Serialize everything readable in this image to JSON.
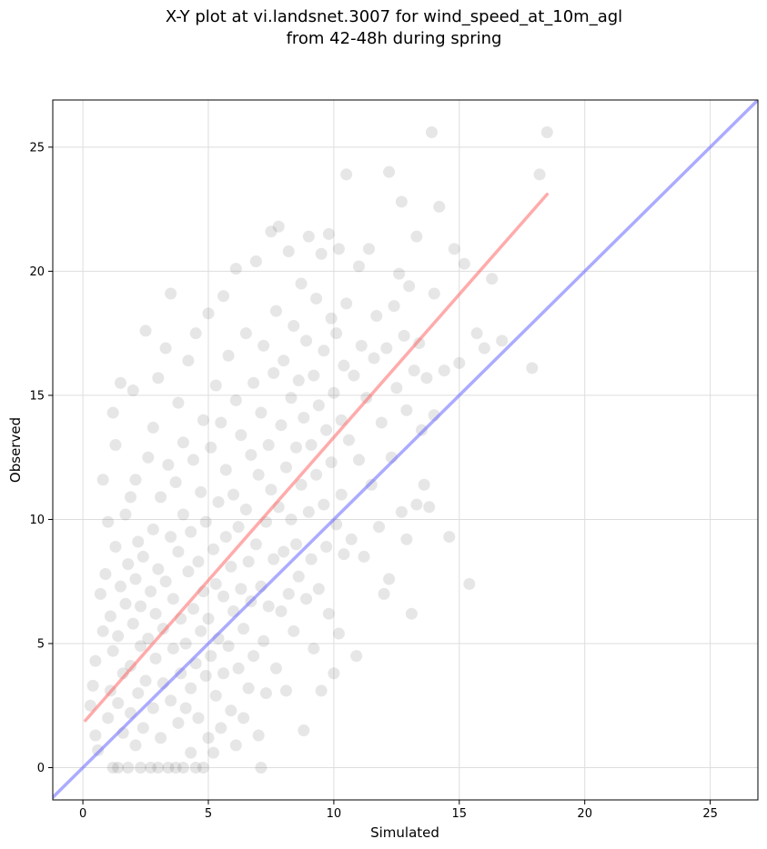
{
  "chart_data": {
    "type": "scatter",
    "title_line1": "X-Y plot at vi.landsnet.3007 for wind_speed_at_10m_agl",
    "title_line2": "from 42-48h during spring",
    "xlabel": "Simulated",
    "ylabel": "Observed",
    "xlim": [
      -1.2,
      26.9
    ],
    "ylim": [
      -1.3,
      26.9
    ],
    "xticks": [
      0,
      5,
      10,
      15,
      20,
      25
    ],
    "yticks": [
      0,
      5,
      10,
      15,
      20,
      25
    ],
    "xtick_labels": [
      "0",
      "5",
      "10",
      "15",
      "20",
      "25"
    ],
    "ytick_labels": [
      "0",
      "5",
      "10",
      "15",
      "20",
      "25"
    ],
    "grid": true,
    "colors": {
      "points": "#333333",
      "regression": "#ff6666",
      "identity": "#6666ff",
      "grid": "#dddddd"
    },
    "identity_line": {
      "x": [
        -1.2,
        26.9
      ],
      "y": [
        -1.2,
        26.9
      ]
    },
    "regression_line": {
      "x": [
        0.1,
        18.5
      ],
      "y": [
        1.9,
        23.1
      ]
    },
    "points": [
      [
        0.3,
        2.5
      ],
      [
        0.4,
        3.3
      ],
      [
        0.5,
        4.3
      ],
      [
        0.5,
        1.3
      ],
      [
        0.6,
        0.7
      ],
      [
        0.7,
        7.0
      ],
      [
        0.8,
        5.5
      ],
      [
        0.8,
        11.6
      ],
      [
        0.9,
        7.8
      ],
      [
        1.0,
        2.0
      ],
      [
        1.0,
        9.9
      ],
      [
        1.1,
        3.1
      ],
      [
        1.1,
        6.1
      ],
      [
        1.2,
        0.0
      ],
      [
        1.2,
        4.7
      ],
      [
        1.2,
        14.3
      ],
      [
        1.3,
        8.9
      ],
      [
        1.3,
        13.0
      ],
      [
        1.4,
        0.0
      ],
      [
        1.4,
        2.6
      ],
      [
        1.4,
        5.3
      ],
      [
        1.5,
        7.3
      ],
      [
        1.5,
        15.5
      ],
      [
        1.6,
        1.4
      ],
      [
        1.6,
        3.8
      ],
      [
        1.7,
        6.6
      ],
      [
        1.7,
        10.2
      ],
      [
        1.8,
        0.0
      ],
      [
        1.8,
        8.2
      ],
      [
        1.9,
        2.2
      ],
      [
        1.9,
        4.1
      ],
      [
        1.9,
        10.9
      ],
      [
        2.0,
        5.8
      ],
      [
        2.0,
        15.2
      ],
      [
        2.1,
        0.9
      ],
      [
        2.1,
        7.6
      ],
      [
        2.1,
        11.6
      ],
      [
        2.2,
        3.0
      ],
      [
        2.2,
        9.1
      ],
      [
        2.3,
        0.0
      ],
      [
        2.3,
        4.9
      ],
      [
        2.3,
        6.5
      ],
      [
        2.4,
        1.6
      ],
      [
        2.4,
        8.5
      ],
      [
        2.5,
        17.6
      ],
      [
        2.5,
        3.5
      ],
      [
        2.6,
        12.5
      ],
      [
        2.6,
        5.2
      ],
      [
        2.7,
        0.0
      ],
      [
        2.7,
        7.1
      ],
      [
        2.8,
        2.4
      ],
      [
        2.8,
        9.6
      ],
      [
        2.8,
        13.7
      ],
      [
        2.9,
        4.4
      ],
      [
        2.9,
        6.2
      ],
      [
        3.0,
        0.0
      ],
      [
        3.0,
        15.7
      ],
      [
        3.0,
        8.0
      ],
      [
        3.1,
        1.2
      ],
      [
        3.1,
        10.9
      ],
      [
        3.2,
        3.4
      ],
      [
        3.2,
        5.6
      ],
      [
        3.3,
        7.5
      ],
      [
        3.3,
        16.9
      ],
      [
        3.4,
        0.0
      ],
      [
        3.4,
        12.2
      ],
      [
        3.5,
        2.7
      ],
      [
        3.5,
        9.3
      ],
      [
        3.5,
        19.1
      ],
      [
        3.6,
        4.8
      ],
      [
        3.6,
        6.8
      ],
      [
        3.7,
        0.0
      ],
      [
        3.7,
        11.5
      ],
      [
        3.8,
        1.8
      ],
      [
        3.8,
        8.7
      ],
      [
        3.8,
        14.7
      ],
      [
        3.9,
        3.8
      ],
      [
        3.9,
        6.0
      ],
      [
        4.0,
        0.0
      ],
      [
        4.0,
        10.2
      ],
      [
        4.0,
        13.1
      ],
      [
        4.1,
        2.4
      ],
      [
        4.1,
        5.0
      ],
      [
        4.2,
        7.9
      ],
      [
        4.2,
        16.4
      ],
      [
        4.3,
        0.6
      ],
      [
        4.3,
        3.2
      ],
      [
        4.3,
        9.5
      ],
      [
        4.4,
        6.4
      ],
      [
        4.4,
        12.4
      ],
      [
        4.5,
        0.0
      ],
      [
        4.5,
        4.2
      ],
      [
        4.5,
        17.5
      ],
      [
        4.6,
        2.0
      ],
      [
        4.6,
        8.3
      ],
      [
        4.7,
        5.5
      ],
      [
        4.7,
        11.1
      ],
      [
        4.8,
        0.0
      ],
      [
        4.8,
        7.1
      ],
      [
        4.8,
        14.0
      ],
      [
        4.9,
        3.7
      ],
      [
        4.9,
        9.9
      ],
      [
        5.0,
        1.2
      ],
      [
        5.0,
        6.0
      ],
      [
        5.0,
        18.3
      ],
      [
        5.1,
        12.9
      ],
      [
        5.1,
        4.5
      ],
      [
        5.2,
        8.8
      ],
      [
        5.2,
        0.6
      ],
      [
        5.3,
        15.4
      ],
      [
        5.3,
        2.9
      ],
      [
        5.3,
        7.4
      ],
      [
        5.4,
        10.7
      ],
      [
        5.4,
        5.2
      ],
      [
        5.5,
        13.9
      ],
      [
        5.5,
        1.6
      ],
      [
        5.6,
        6.9
      ],
      [
        5.6,
        19.0
      ],
      [
        5.6,
        3.8
      ],
      [
        5.7,
        9.3
      ],
      [
        5.7,
        12.0
      ],
      [
        5.8,
        4.9
      ],
      [
        5.8,
        16.6
      ],
      [
        5.9,
        8.1
      ],
      [
        5.9,
        2.3
      ],
      [
        6.0,
        11.0
      ],
      [
        6.0,
        6.3
      ],
      [
        6.1,
        14.8
      ],
      [
        6.1,
        0.9
      ],
      [
        6.1,
        20.1
      ],
      [
        6.2,
        4.0
      ],
      [
        6.2,
        9.7
      ],
      [
        6.3,
        7.2
      ],
      [
        6.3,
        13.4
      ],
      [
        6.4,
        2.0
      ],
      [
        6.4,
        5.6
      ],
      [
        6.5,
        17.5
      ],
      [
        6.5,
        10.4
      ],
      [
        6.6,
        3.2
      ],
      [
        6.6,
        8.3
      ],
      [
        6.7,
        12.6
      ],
      [
        6.7,
        6.7
      ],
      [
        6.8,
        15.5
      ],
      [
        6.8,
        4.5
      ],
      [
        6.9,
        20.4
      ],
      [
        6.9,
        9.0
      ],
      [
        7.0,
        1.3
      ],
      [
        7.0,
        11.8
      ],
      [
        7.1,
        7.3
      ],
      [
        7.1,
        14.3
      ],
      [
        7.1,
        0.0
      ],
      [
        7.2,
        5.1
      ],
      [
        7.2,
        17.0
      ],
      [
        7.3,
        9.9
      ],
      [
        7.3,
        3.0
      ],
      [
        7.4,
        13.0
      ],
      [
        7.4,
        6.5
      ],
      [
        7.5,
        21.6
      ],
      [
        7.5,
        11.2
      ],
      [
        7.6,
        8.4
      ],
      [
        7.6,
        15.9
      ],
      [
        7.7,
        4.0
      ],
      [
        7.7,
        18.4
      ],
      [
        7.8,
        10.5
      ],
      [
        7.8,
        21.8
      ],
      [
        7.9,
        6.3
      ],
      [
        7.9,
        13.8
      ],
      [
        8.0,
        8.7
      ],
      [
        8.0,
        16.4
      ],
      [
        8.1,
        3.1
      ],
      [
        8.1,
        12.1
      ],
      [
        8.2,
        20.8
      ],
      [
        8.2,
        7.0
      ],
      [
        8.3,
        14.9
      ],
      [
        8.3,
        10.0
      ],
      [
        8.4,
        17.8
      ],
      [
        8.4,
        5.5
      ],
      [
        8.5,
        12.9
      ],
      [
        8.5,
        9.0
      ],
      [
        8.6,
        15.6
      ],
      [
        8.6,
        7.7
      ],
      [
        8.7,
        19.5
      ],
      [
        8.7,
        11.4
      ],
      [
        8.8,
        1.5
      ],
      [
        8.8,
        14.1
      ],
      [
        8.9,
        6.8
      ],
      [
        8.9,
        17.2
      ],
      [
        9.0,
        10.3
      ],
      [
        9.0,
        21.4
      ],
      [
        9.1,
        13.0
      ],
      [
        9.1,
        8.4
      ],
      [
        9.2,
        15.8
      ],
      [
        9.2,
        4.8
      ],
      [
        9.3,
        18.9
      ],
      [
        9.3,
        11.8
      ],
      [
        9.4,
        7.2
      ],
      [
        9.4,
        14.6
      ],
      [
        9.5,
        20.7
      ],
      [
        9.5,
        3.1
      ],
      [
        9.6,
        10.6
      ],
      [
        9.6,
        16.8
      ],
      [
        9.7,
        13.6
      ],
      [
        9.7,
        8.9
      ],
      [
        9.8,
        21.5
      ],
      [
        9.8,
        6.2
      ],
      [
        9.9,
        18.1
      ],
      [
        9.9,
        12.3
      ],
      [
        10.0,
        15.1
      ],
      [
        10.0,
        3.8
      ],
      [
        10.1,
        9.8
      ],
      [
        10.1,
        17.5
      ],
      [
        10.2,
        5.4
      ],
      [
        10.2,
        20.9
      ],
      [
        10.3,
        14.0
      ],
      [
        10.3,
        11.0
      ],
      [
        10.4,
        16.2
      ],
      [
        10.4,
        8.6
      ],
      [
        10.5,
        23.9
      ],
      [
        10.5,
        18.7
      ],
      [
        10.6,
        13.2
      ],
      [
        10.7,
        9.2
      ],
      [
        10.8,
        15.8
      ],
      [
        10.9,
        4.5
      ],
      [
        11.0,
        20.2
      ],
      [
        11.0,
        12.4
      ],
      [
        11.1,
        17.0
      ],
      [
        11.2,
        8.5
      ],
      [
        11.3,
        14.9
      ],
      [
        11.4,
        20.9
      ],
      [
        11.5,
        11.4
      ],
      [
        11.6,
        16.5
      ],
      [
        11.7,
        18.2
      ],
      [
        11.8,
        9.7
      ],
      [
        11.9,
        13.9
      ],
      [
        12.0,
        7.0
      ],
      [
        12.1,
        16.9
      ],
      [
        12.2,
        24.0
      ],
      [
        12.2,
        7.6
      ],
      [
        12.3,
        12.5
      ],
      [
        12.4,
        18.6
      ],
      [
        12.5,
        15.3
      ],
      [
        12.6,
        19.9
      ],
      [
        12.7,
        22.8
      ],
      [
        12.7,
        10.3
      ],
      [
        12.8,
        17.4
      ],
      [
        12.9,
        14.4
      ],
      [
        12.9,
        9.2
      ],
      [
        13.0,
        19.4
      ],
      [
        13.1,
        6.2
      ],
      [
        13.2,
        16.0
      ],
      [
        13.3,
        21.4
      ],
      [
        13.3,
        10.6
      ],
      [
        13.4,
        17.1
      ],
      [
        13.5,
        13.6
      ],
      [
        13.6,
        11.4
      ],
      [
        13.7,
        15.7
      ],
      [
        13.8,
        10.5
      ],
      [
        13.9,
        25.6
      ],
      [
        14.0,
        19.1
      ],
      [
        14.0,
        14.2
      ],
      [
        14.2,
        22.6
      ],
      [
        14.4,
        16.0
      ],
      [
        14.6,
        9.3
      ],
      [
        14.8,
        20.9
      ],
      [
        15.0,
        16.3
      ],
      [
        15.2,
        20.3
      ],
      [
        15.4,
        7.4
      ],
      [
        15.7,
        17.5
      ],
      [
        16.0,
        16.9
      ],
      [
        16.3,
        19.7
      ],
      [
        16.7,
        17.2
      ],
      [
        17.9,
        16.1
      ],
      [
        18.2,
        23.9
      ],
      [
        18.5,
        25.6
      ]
    ]
  }
}
